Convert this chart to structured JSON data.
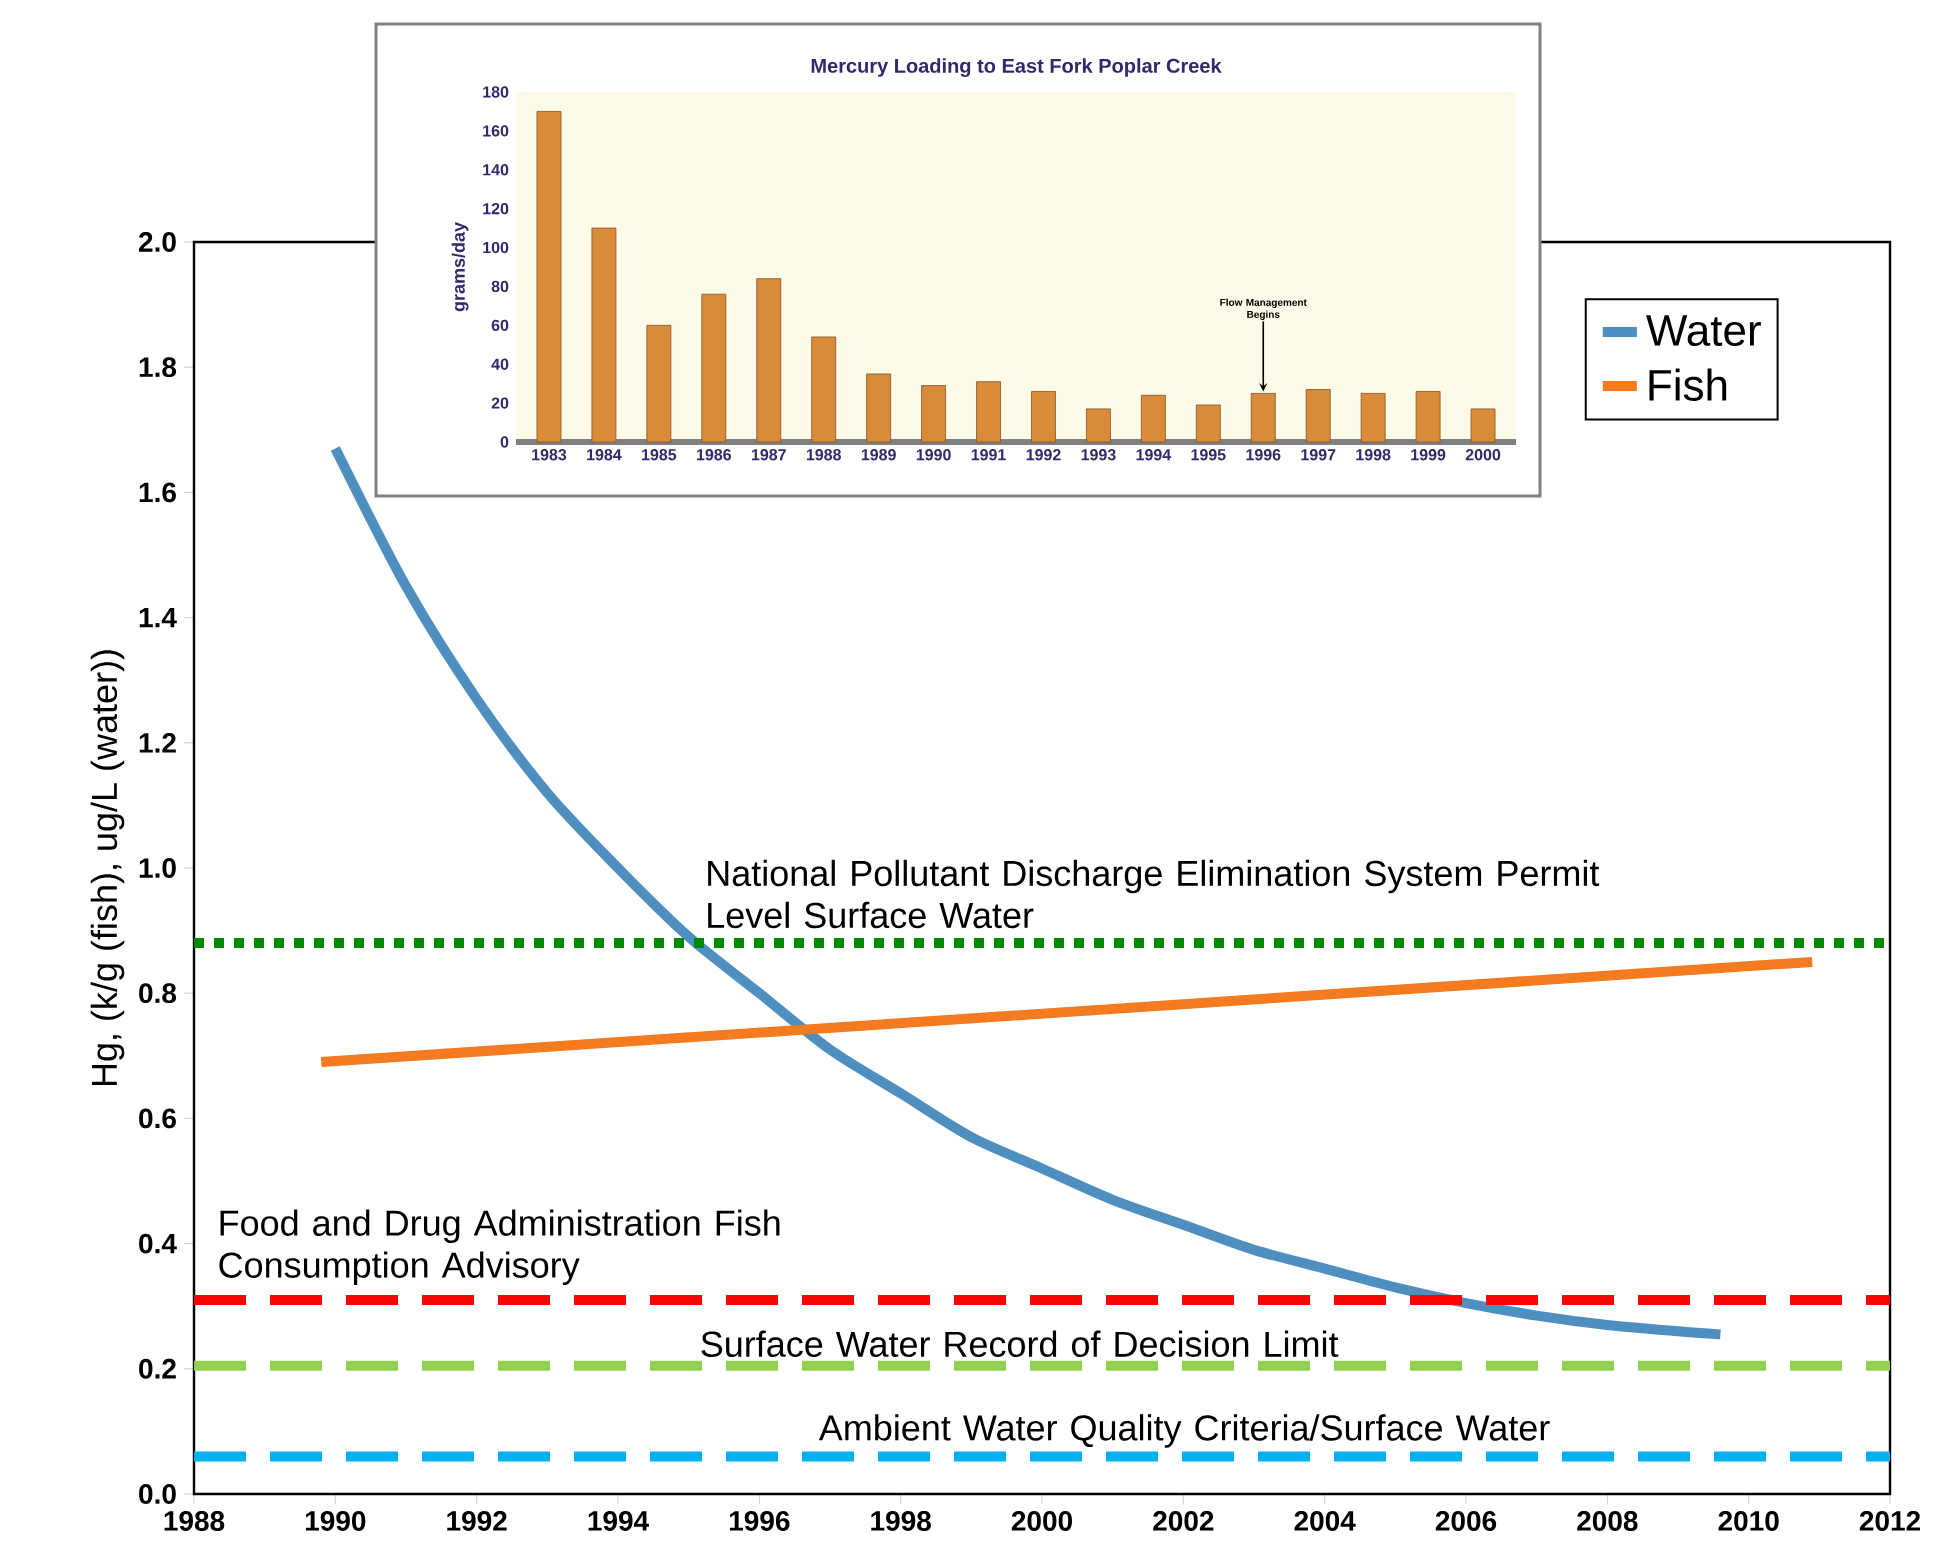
{
  "chart_data": [
    {
      "type": "line",
      "ylabel": "Hg, (k/g (fish), ug/L (water))",
      "legend": "top right",
      "xlim": [
        1988,
        2012
      ],
      "xticks": [
        1988,
        1990,
        1992,
        1994,
        1996,
        1998,
        2000,
        2002,
        2004,
        2006,
        2008,
        2010,
        2012
      ],
      "ylim": [
        0,
        2
      ],
      "yticks": [
        {
          "value": 0,
          "label": "0.0"
        },
        {
          "value": 0.2,
          "label": "0.2"
        },
        {
          "value": 0.4,
          "label": "0.4"
        },
        {
          "value": 0.6,
          "label": "0.6"
        },
        {
          "value": 0.8,
          "label": "0.8"
        },
        {
          "value": 1,
          "label": "1.0"
        },
        {
          "value": 1.2,
          "label": "1.2"
        },
        {
          "value": 1.4,
          "label": "1.4"
        },
        {
          "value": 1.6,
          "label": "1.6"
        },
        {
          "value": 1.8,
          "label": "1.8"
        },
        {
          "value": 2,
          "label": "2.0"
        }
      ],
      "series": [
        {
          "name": "Water",
          "color": "#4f8fc0",
          "x": [
            1990,
            1991,
            1992,
            1993,
            1994,
            1995,
            1996,
            1997,
            1998,
            1999,
            2000,
            2001,
            2002,
            2003,
            2004,
            2005,
            2006,
            2007,
            2008,
            2009,
            2009.6
          ],
          "values": [
            1.67,
            1.45,
            1.27,
            1.12,
            1.0,
            0.89,
            0.8,
            0.71,
            0.64,
            0.57,
            0.52,
            0.47,
            0.43,
            0.39,
            0.36,
            0.33,
            0.305,
            0.285,
            0.27,
            0.26,
            0.255
          ]
        },
        {
          "name": "Fish",
          "color": "#f47b20",
          "x": [
            1989.8,
            2010.9
          ],
          "values": [
            0.69,
            0.85
          ]
        }
      ],
      "ref_lines": [
        {
          "axis": "y",
          "value": 0.88,
          "label": "National Pollutant Discharge Elimination System Permit Level Surface Water",
          "color": "#008a00",
          "line_style": "dotted"
        },
        {
          "axis": "y",
          "value": 0.31,
          "label": "Food and Drug Administration Fish Consumption Advisory",
          "color": "#ff0000",
          "line_style": "dashed"
        },
        {
          "axis": "y",
          "value": 0.205,
          "label": "Surface Water Record of Decision Limit",
          "color": "#92d050",
          "line_style": "dashed"
        },
        {
          "axis": "y",
          "value": 0.06,
          "label": "Ambient Water Quality Criteria/Surface Water",
          "color": "#00b0f0",
          "line_style": "dashed"
        }
      ]
    },
    {
      "type": "bar",
      "title": "Mercury Loading to East Fork Poplar Creek",
      "ylabel": "grams/day",
      "color": "#d98b3a",
      "categories": [
        "1983",
        "1984",
        "1985",
        "1986",
        "1987",
        "1988",
        "1989",
        "1990",
        "1991",
        "1992",
        "1993",
        "1994",
        "1995",
        "1996",
        "1997",
        "1998",
        "1999",
        "2000"
      ],
      "values": [
        170,
        110,
        60,
        76,
        84,
        54,
        35,
        29,
        31,
        26,
        17,
        24,
        19,
        25,
        27,
        25,
        26,
        17
      ],
      "ylim": [
        0,
        180
      ],
      "yticks": [
        0,
        20,
        40,
        60,
        80,
        100,
        120,
        140,
        160,
        180
      ],
      "annotations": [
        {
          "text": "Flow Management Begins",
          "x": "1996",
          "y": 25
        }
      ]
    }
  ]
}
